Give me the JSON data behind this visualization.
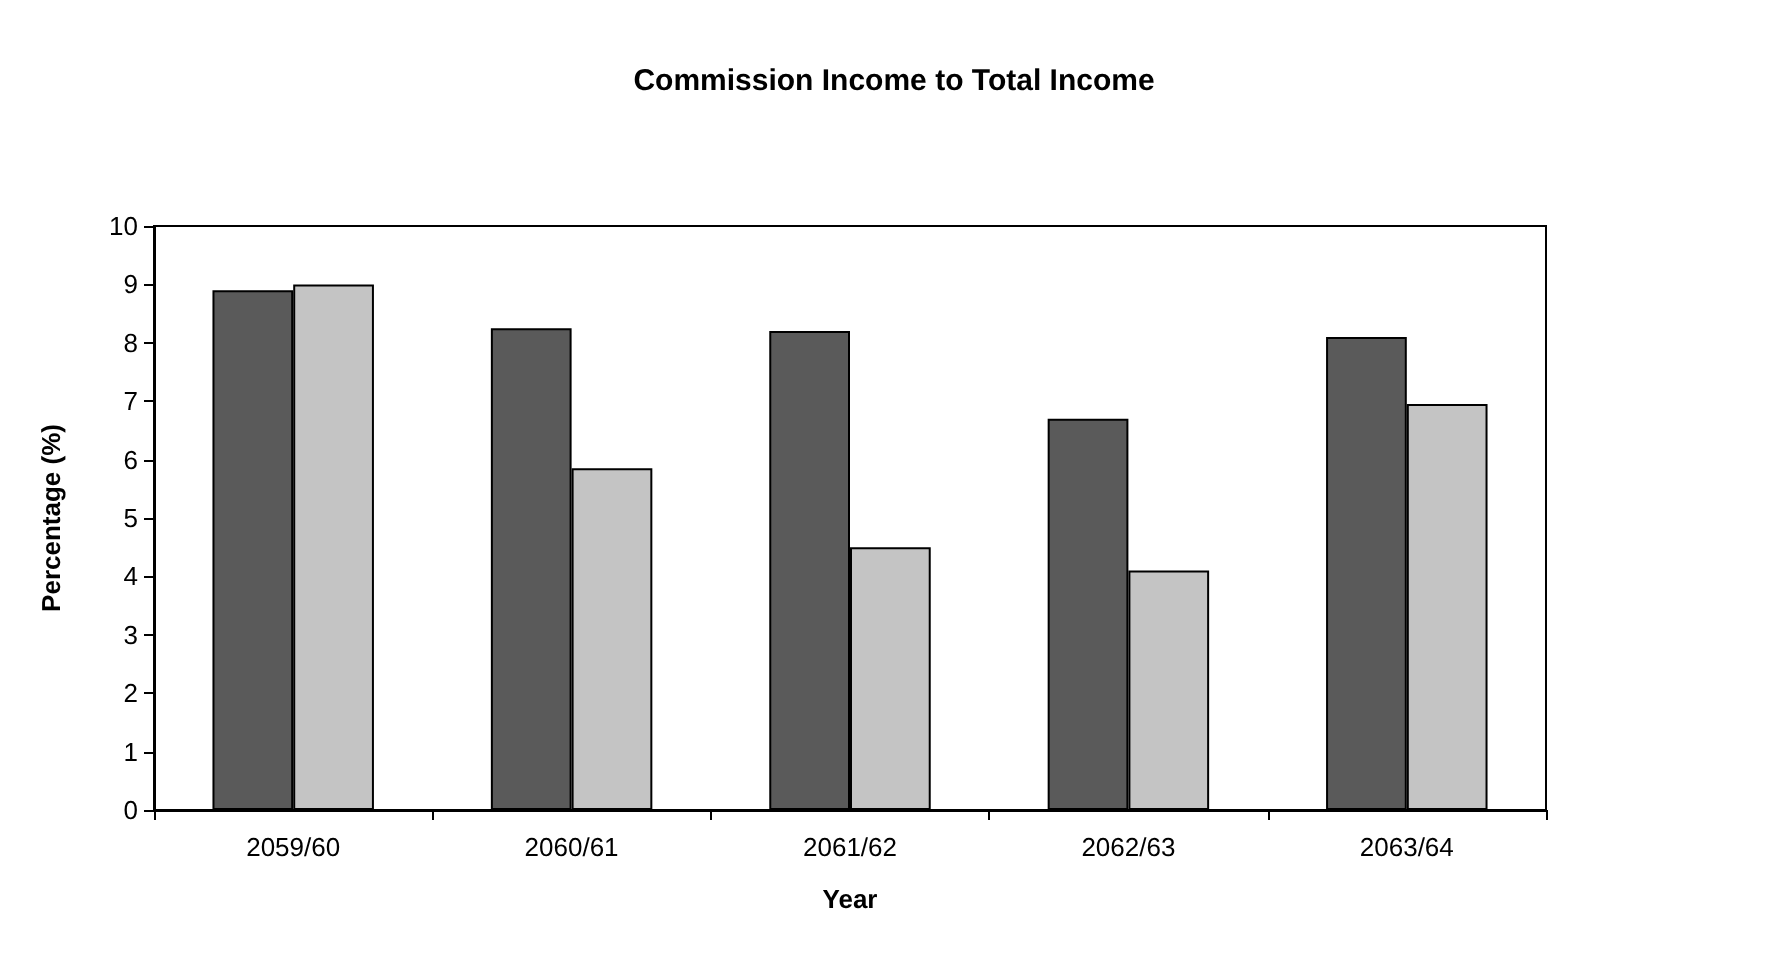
{
  "chart_data": {
    "type": "bar",
    "title": "Commission Income to Total Income",
    "xlabel": "Year",
    "ylabel": "Percentage (%)",
    "categories": [
      "2059/60",
      "2060/61",
      "2061/62",
      "2062/63",
      "2063/64"
    ],
    "series": [
      {
        "color": "#5a5a5a",
        "values": [
          8.9,
          8.25,
          8.2,
          6.7,
          8.1
        ]
      },
      {
        "color": "#c4c4c4",
        "values": [
          9.0,
          5.85,
          4.5,
          4.1,
          6.95
        ]
      }
    ],
    "ylim": [
      0,
      10
    ],
    "yticks": [
      0,
      1,
      2,
      3,
      4,
      5,
      6,
      7,
      8,
      9,
      10
    ],
    "grid": false
  }
}
